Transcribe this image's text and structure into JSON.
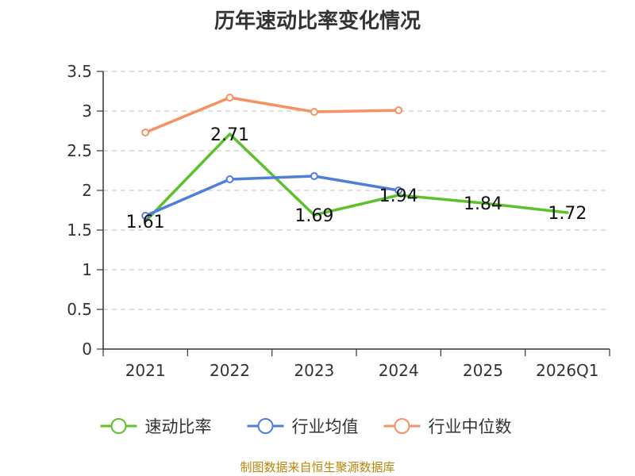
{
  "chart_data": {
    "type": "line",
    "title": "历年速动比率变化情况",
    "categories": [
      "2021",
      "2022",
      "2023",
      "2024",
      "2025",
      "2026Q1"
    ],
    "y_ticks": [
      "0",
      "0.5",
      "1",
      "1.5",
      "2",
      "2.5",
      "3",
      "3.5"
    ],
    "ylim": [
      0,
      3.5
    ],
    "xlabel": "",
    "ylabel": "",
    "grid": true,
    "legend_position": "bottom",
    "series": [
      {
        "name": "速动比率",
        "color": "#5cc22c",
        "values": [
          1.61,
          2.71,
          1.69,
          1.94,
          1.84,
          1.72
        ],
        "labels": [
          "1.61",
          "2.71",
          "1.69",
          "1.94",
          "1.84",
          "1.72"
        ],
        "show_markers": false,
        "show_labels": true
      },
      {
        "name": "行业均值",
        "color": "#4f7fd9",
        "values": [
          1.68,
          2.14,
          2.18,
          2.0,
          null,
          null
        ],
        "show_markers": true,
        "show_labels": false
      },
      {
        "name": "行业中位数",
        "color": "#f59163",
        "values": [
          2.73,
          3.17,
          2.99,
          3.01,
          null,
          null
        ],
        "show_markers": true,
        "show_labels": false
      }
    ]
  },
  "footer": {
    "source": "制图数据来自恒生聚源数据库"
  }
}
